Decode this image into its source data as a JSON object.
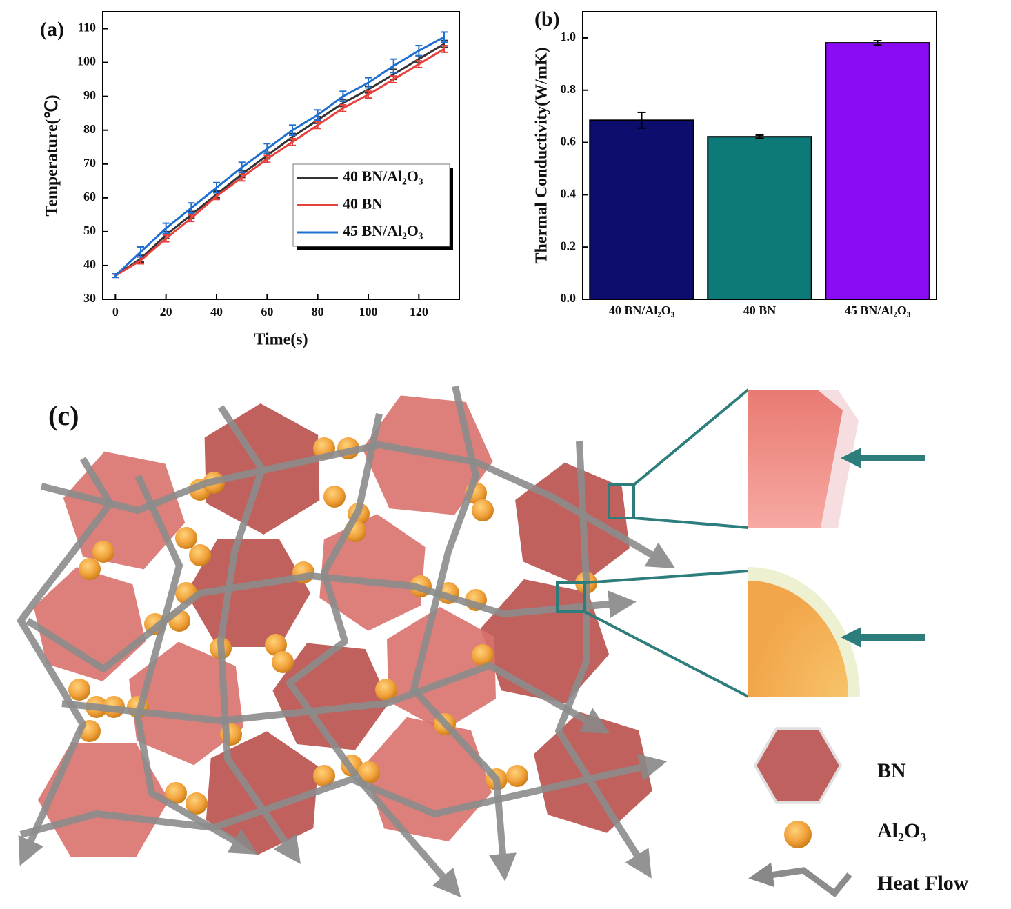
{
  "chart_data": [
    {
      "type": "line",
      "panel_label": "(a)",
      "x_label": "Time(s)",
      "y_label": "Temperature(℃)",
      "x": [
        0,
        10,
        20,
        30,
        40,
        50,
        60,
        70,
        80,
        90,
        100,
        110,
        120,
        130
      ],
      "series": [
        {
          "name": "40 BN/Al₂O₃",
          "color": "#333333",
          "values": [
            37,
            42,
            49,
            55,
            61,
            67,
            72.5,
            78,
            83,
            88,
            92,
            96.5,
            101,
            105.5
          ],
          "errors": [
            0.5,
            1,
            1,
            1,
            1,
            1,
            1,
            1,
            1,
            1,
            1,
            1.5,
            1,
            1
          ]
        },
        {
          "name": "40 BN",
          "color": "#e8413c",
          "values": [
            37,
            41.5,
            48,
            54,
            60.5,
            66,
            71.5,
            76.5,
            81.5,
            86.5,
            90.5,
            95,
            99.5,
            104
          ],
          "errors": [
            0.5,
            1,
            1,
            1,
            1,
            1,
            1,
            1,
            1,
            1,
            1,
            1,
            1,
            1
          ]
        },
        {
          "name": "45 BN/Al₂O₃",
          "color": "#1f6fd1",
          "values": [
            37,
            44,
            51,
            57,
            63,
            69,
            74.5,
            80,
            84.5,
            90,
            94,
            99,
            103.5,
            107.5
          ],
          "errors": [
            0.5,
            1.5,
            1.5,
            1.5,
            1.5,
            1.5,
            1.5,
            1.5,
            1.5,
            1.5,
            1.5,
            2,
            1.5,
            1.5
          ]
        }
      ],
      "xlim": [
        -5,
        136
      ],
      "ylim": [
        30,
        115
      ],
      "xticks": [
        0,
        20,
        40,
        60,
        80,
        100,
        120
      ],
      "yticks": [
        30,
        40,
        50,
        60,
        70,
        80,
        90,
        100,
        110
      ],
      "legend": "center-right"
    },
    {
      "type": "bar",
      "panel_label": "(b)",
      "y_label": "Thermal Conductivity(W/mK)",
      "categories": [
        "40 BN/Al₂O₃",
        "40 BN",
        "45 BN/Al₂O₃"
      ],
      "values": [
        0.685,
        0.622,
        0.981
      ],
      "errors": [
        0.03,
        0.006,
        0.008
      ],
      "colors": [
        "#0d0d6e",
        "#0e7a78",
        "#8a0cf5"
      ],
      "ylim": [
        0,
        1.1
      ],
      "yticks": [
        {
          "value": 0,
          "label": "0.0"
        },
        0.2,
        0.4,
        0.6,
        0.8,
        {
          "value": 1,
          "label": "1.0"
        }
      ]
    }
  ],
  "diagram": {
    "label": "(c)",
    "legend": [
      "BN",
      "Al₂O₃",
      "Heat Flow"
    ]
  }
}
